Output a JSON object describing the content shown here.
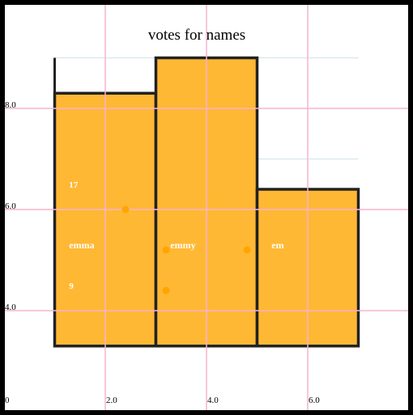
{
  "chart_data": {
    "type": "bar",
    "title": "votes for names",
    "xlabel": "",
    "ylabel": "",
    "xlim": [
      0,
      8
    ],
    "ylim": [
      2.2,
      10
    ],
    "categories": [
      "emma",
      "emmy",
      "em"
    ],
    "bars": [
      {
        "name": "emma",
        "x0": 1.0,
        "x1": 3.0,
        "value": 8.3
      },
      {
        "name": "emmy",
        "x0": 3.0,
        "x1": 5.0,
        "value": 9.0
      },
      {
        "name": "em",
        "x0": 5.0,
        "x1": 7.0,
        "value": 6.4
      }
    ],
    "x_ticks": [
      {
        "value": 0,
        "label": "0"
      },
      {
        "value": 2,
        "label": "2.0"
      },
      {
        "value": 4,
        "label": "4.0"
      },
      {
        "value": 6,
        "label": "6.0"
      }
    ],
    "y_ticks": [
      {
        "value": 4,
        "label": "4.0"
      },
      {
        "value": 6,
        "label": "6.0"
      },
      {
        "value": 8,
        "label": "8.0"
      }
    ],
    "annotations": [
      {
        "text": "17",
        "x": 1.3,
        "y": 6.5
      },
      {
        "text": "emma",
        "x": 1.3,
        "y": 5.3
      },
      {
        "text": "9",
        "x": 1.3,
        "y": 4.5
      },
      {
        "text": "emmy",
        "x": 3.3,
        "y": 5.3
      },
      {
        "text": "em",
        "x": 5.3,
        "y": 5.3
      }
    ],
    "points": [
      {
        "x": 2.4,
        "y": 6.0
      },
      {
        "x": 3.2,
        "y": 5.2
      },
      {
        "x": 3.2,
        "y": 4.4
      },
      {
        "x": 4.8,
        "y": 5.2
      }
    ],
    "colors": {
      "bar_fill": "#ffb833",
      "bar_stroke": "#222222",
      "grid_major": "#f7b3d0",
      "grid_minor": "#d9e9ee",
      "point": "#ffa500"
    },
    "grid": true
  }
}
